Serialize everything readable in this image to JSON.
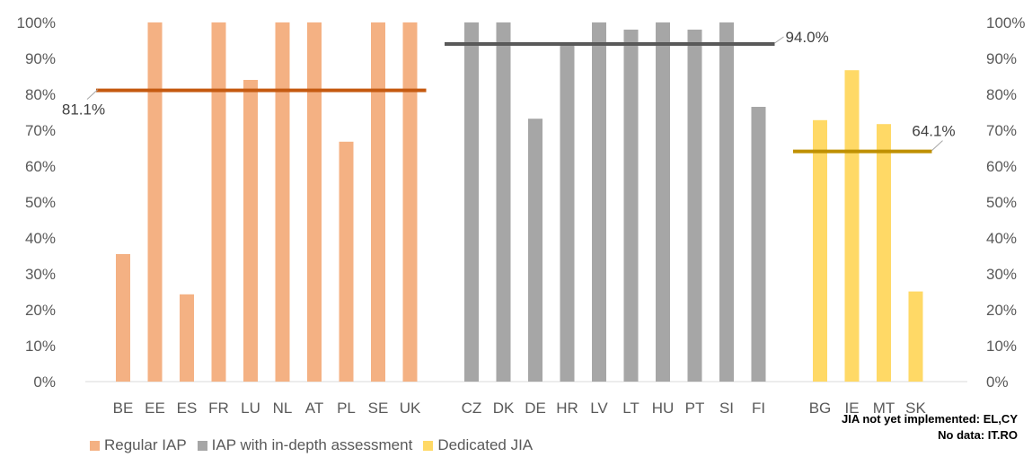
{
  "chart_data": {
    "type": "bar",
    "ylim": [
      0,
      100
    ],
    "y_ticks": [
      "0%",
      "10%",
      "20%",
      "30%",
      "40%",
      "50%",
      "60%",
      "70%",
      "80%",
      "90%",
      "100%"
    ],
    "grid": false,
    "legend_position": "bottom-left",
    "series": [
      {
        "name": "Regular IAP",
        "color": "#F4B183",
        "categories": [
          "BE",
          "EE",
          "ES",
          "FR",
          "LU",
          "NL",
          "AT",
          "PL",
          "SE",
          "UK"
        ],
        "values": [
          35.5,
          100,
          24.3,
          100,
          84,
          100,
          100,
          66.8,
          100,
          100
        ],
        "average": 81.1,
        "average_label": "81.1%",
        "average_color": "#C55A11"
      },
      {
        "name": "IAP with in-depth assessment",
        "color": "#A6A6A6",
        "categories": [
          "CZ",
          "DK",
          "DE",
          "HR",
          "LV",
          "LT",
          "HU",
          "PT",
          "SI",
          "FI"
        ],
        "values": [
          100,
          100,
          73.2,
          93.7,
          100,
          98,
          100,
          98,
          100,
          76.5
        ],
        "average": 94.0,
        "average_label": "94.0%",
        "average_color": "#595959"
      },
      {
        "name": "Dedicated JIA",
        "color": "#FFD966",
        "categories": [
          "BG",
          "IE",
          "MT",
          "SK"
        ],
        "values": [
          72.8,
          86.7,
          71.7,
          25.1
        ],
        "average": 64.1,
        "average_label": "64.1%",
        "average_color": "#BF9000"
      }
    ]
  },
  "notes": {
    "not_implemented": "JIA not yet implemented: EL,CY",
    "no_data": "No data: IT.RO"
  }
}
